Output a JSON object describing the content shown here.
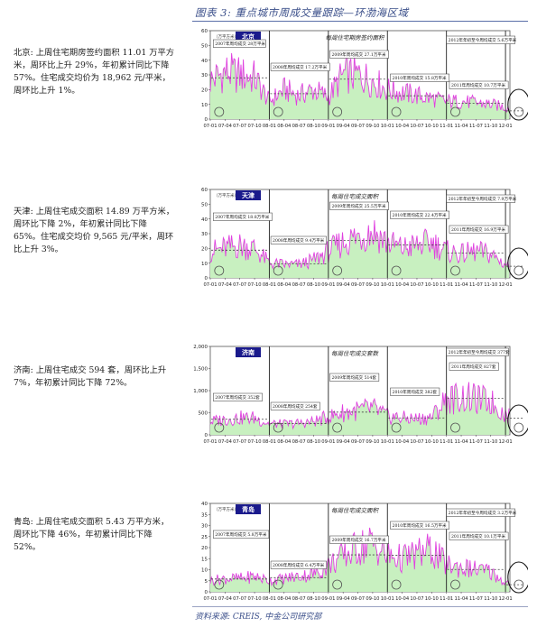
{
  "figure_title": "图表 3: 重点城市周成交量跟踪—环渤海区域",
  "source": "资料来源: CREIS, 中金公司研究部",
  "x_ticks": [
    "07-01",
    "07-04",
    "07-07",
    "07-10",
    "08-01",
    "08-04",
    "08-07",
    "08-10",
    "09-01",
    "09-04",
    "09-07",
    "09-10",
    "10-01",
    "10-04",
    "10-07",
    "10-10",
    "11-01",
    "11-04",
    "11-07",
    "11-10",
    "12-01"
  ],
  "panels": [
    {
      "city_label": "北京",
      "text_city": "北京:",
      "text_body": "上周住宅期房签约面积 11.01 万平方米，周环比上升 29%，年初累计同比下降 57%。住宅成交均价为 18,962 元/平米，周环比上升 1%。",
      "unit": "（万平方米）",
      "series_title": "每周住宅期房签约面积",
      "y_ticks": [
        "0",
        "10",
        "20",
        "30",
        "40",
        "50",
        "60"
      ],
      "ymax": 60,
      "annotations": [
        "2007年周均成交 28万平米",
        "2008年周均成交 17.2万平米",
        "2009年周均成交 27.1万平米",
        "2010年周均成交 15.8万平米",
        "2011年周均成交 10.7万平米",
        "2012年年初至今周均成交 5.6万平米"
      ]
    },
    {
      "city_label": "天津",
      "text_city": "天津:",
      "text_body": "上周住宅成交面积 14.89 万平方米，周环比下降 2%，年初累计同比下降 65%。住宅成交均价 9,565 元/平米，周环比上升 3%。",
      "unit": "（万平方米）",
      "series_title": "每周住宅成交面积",
      "y_ticks": [
        "0",
        "10",
        "20",
        "30",
        "40",
        "50",
        "60"
      ],
      "ymax": 60,
      "annotations": [
        "2007年周均成交 18.8万平米",
        "2008年周均成交 9.4万平米",
        "2009年周均成交 25.5万平米",
        "2010年周均成交 22.4万平米",
        "2011年周均成交 16.9万平米",
        "2012年年初至今周均成交 7.9万平米"
      ]
    },
    {
      "city_label": "济南",
      "text_city": "济南:",
      "text_body": "上周住宅成交 594 套，周环比上升 7%，年初累计同比下降 72%。",
      "unit": "",
      "series_title": "每周住宅成交套数",
      "y_ticks": [
        "0",
        "500",
        "1,000",
        "1,500",
        "2,000"
      ],
      "ymax": 2000,
      "annotations": [
        "2007年周均成交 352套",
        "2008年周均成交 254套",
        "2009年周均成交 514套",
        "2010年周均成交 382套",
        "2011年周均成交 827套",
        "2012年年初至今周均成交 377套"
      ]
    },
    {
      "city_label": "青岛",
      "text_city": "青岛:",
      "text_body": "上周住宅成交面积 5.43 万平方米，周环比下降 46%，年初累计同比下降 52%。",
      "unit": "（万平方米）",
      "series_title": "每周住宅成交面积",
      "y_ticks": [
        "0",
        "5",
        "10",
        "15",
        "20",
        "25",
        "30",
        "35",
        "40"
      ],
      "ymax": 40,
      "annotations": [
        "2007年周均成交 5.8万平米",
        "2008年周均成交 6.4万平米",
        "2009年周均成交 16.7万平米",
        "2010年周均成交 16.5万平米",
        "2011年周均成交 10.1万平米",
        "2012年年初至今周均成交 3.2万平米"
      ]
    }
  ],
  "colors": {
    "line": "#e040e0",
    "area": "#c8f0c0",
    "avg": "#444444",
    "label_bg": "#1a1a8c",
    "title": "#3b4f8a"
  },
  "chart_data": [
    {
      "type": "area",
      "title": "每周住宅期房签约面积",
      "ylabel": "（万平方米）",
      "ylim": [
        0,
        60
      ],
      "series": [
        {
          "name": "北京",
          "x": [
            "07-01",
            "07-04",
            "07-07",
            "07-10",
            "08-01",
            "08-04",
            "08-07",
            "08-10",
            "09-01",
            "09-04",
            "09-07",
            "09-10",
            "10-01",
            "10-04",
            "10-07",
            "10-10",
            "11-01",
            "11-04",
            "11-07",
            "11-10",
            "12-01"
          ],
          "values": [
            26,
            32,
            30,
            28,
            12,
            20,
            16,
            20,
            15,
            30,
            30,
            26,
            20,
            18,
            16,
            14,
            12,
            12,
            11,
            10,
            8
          ]
        }
      ],
      "yearly_avg": [
        28,
        17.2,
        27.1,
        15.8,
        10.7,
        5.6
      ]
    },
    {
      "type": "area",
      "title": "每周住宅成交面积",
      "ylabel": "（万平方米）",
      "ylim": [
        0,
        60
      ],
      "series": [
        {
          "name": "天津",
          "x": [
            "07-01",
            "07-04",
            "07-07",
            "07-10",
            "08-01",
            "08-04",
            "08-07",
            "08-10",
            "09-01",
            "09-04",
            "09-07",
            "09-10",
            "10-01",
            "10-04",
            "10-07",
            "10-10",
            "11-01",
            "11-04",
            "11-07",
            "11-10",
            "12-01"
          ],
          "values": [
            18,
            20,
            22,
            20,
            10,
            9,
            9,
            12,
            18,
            24,
            28,
            32,
            24,
            20,
            22,
            24,
            18,
            16,
            18,
            16,
            9
          ]
        }
      ],
      "yearly_avg": [
        18.8,
        9.4,
        25.5,
        22.4,
        16.9,
        7.9
      ]
    },
    {
      "type": "area",
      "title": "每周住宅成交套数",
      "ylabel": "",
      "ylim": [
        0,
        2000
      ],
      "series": [
        {
          "name": "济南",
          "x": [
            "07-01",
            "07-04",
            "07-07",
            "07-10",
            "08-01",
            "08-04",
            "08-07",
            "08-10",
            "09-01",
            "09-04",
            "09-07",
            "09-10",
            "10-01",
            "10-04",
            "10-07",
            "10-10",
            "11-01",
            "11-04",
            "11-07",
            "11-10",
            "12-01"
          ],
          "values": [
            300,
            350,
            380,
            380,
            250,
            240,
            260,
            300,
            400,
            500,
            550,
            600,
            420,
            380,
            360,
            400,
            800,
            850,
            800,
            750,
            450
          ]
        }
      ],
      "yearly_avg": [
        352,
        254,
        514,
        382,
        827,
        377
      ]
    },
    {
      "type": "area",
      "title": "每周住宅成交面积",
      "ylabel": "（万平方米）",
      "ylim": [
        0,
        40
      ],
      "series": [
        {
          "name": "青岛",
          "x": [
            "07-01",
            "07-04",
            "07-07",
            "07-10",
            "08-01",
            "08-04",
            "08-07",
            "08-10",
            "09-01",
            "09-04",
            "09-07",
            "09-10",
            "10-01",
            "10-04",
            "10-07",
            "10-10",
            "11-01",
            "11-04",
            "11-07",
            "11-10",
            "12-01"
          ],
          "values": [
            5,
            6,
            6,
            7,
            5,
            6,
            7,
            8,
            12,
            16,
            20,
            22,
            16,
            15,
            17,
            19,
            12,
            11,
            10,
            9,
            4
          ]
        }
      ],
      "yearly_avg": [
        5.8,
        6.4,
        16.7,
        16.5,
        10.1,
        3.2
      ]
    }
  ]
}
